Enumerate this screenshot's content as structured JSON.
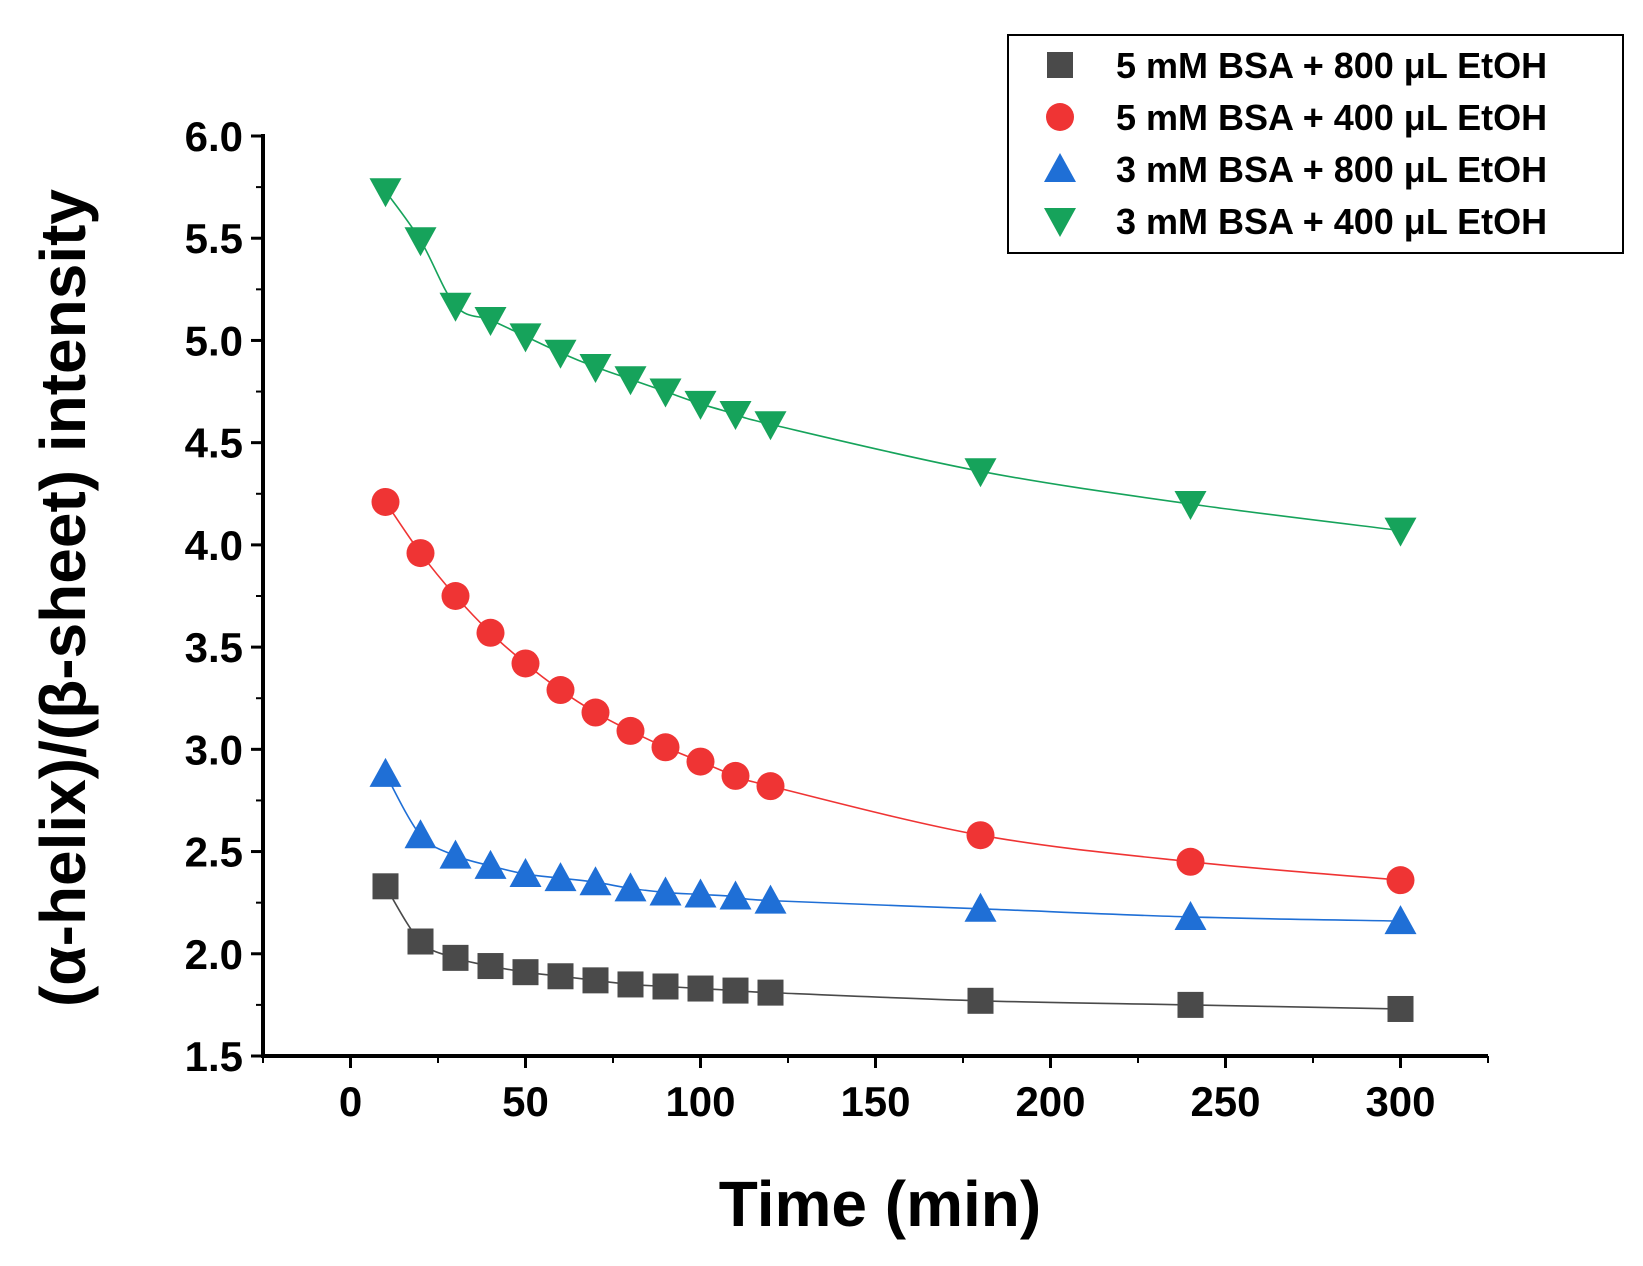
{
  "chart_data": {
    "type": "scatter",
    "title": "",
    "xlabel": "Time (min)",
    "ylabel": "(α-helix)/(β-sheet) intensity",
    "xlim": [
      -25,
      325
    ],
    "ylim": [
      1.5,
      6.0
    ],
    "x_ticks": [
      "0",
      "50",
      "100",
      "150",
      "200",
      "250",
      "300"
    ],
    "y_ticks": [
      "1.5",
      "2.0",
      "2.5",
      "3.0",
      "3.5",
      "4.0",
      "4.5",
      "5.0",
      "5.5",
      "6.0"
    ],
    "legend_position": "top-right",
    "x": [
      10,
      20,
      30,
      40,
      50,
      60,
      70,
      80,
      90,
      100,
      110,
      120,
      180,
      240,
      300
    ],
    "series": [
      {
        "name": "5 mM BSA + 800 μL EtOH",
        "marker": "square",
        "color": "#4a4a4a",
        "values": [
          2.33,
          2.06,
          1.98,
          1.94,
          1.91,
          1.89,
          1.87,
          1.85,
          1.84,
          1.83,
          1.82,
          1.81,
          1.77,
          1.75,
          1.73
        ]
      },
      {
        "name": "5 mM BSA + 400 μL EtOH",
        "marker": "circle",
        "color": "#ef3434",
        "values": [
          4.21,
          3.96,
          3.75,
          3.57,
          3.42,
          3.29,
          3.18,
          3.09,
          3.01,
          2.94,
          2.87,
          2.82,
          2.58,
          2.45,
          2.36
        ]
      },
      {
        "name": "3 mM BSA + 800 μL EtOH",
        "marker": "triangle-up",
        "color": "#1f6fd6",
        "values": [
          2.88,
          2.58,
          2.48,
          2.43,
          2.39,
          2.37,
          2.35,
          2.32,
          2.3,
          2.29,
          2.28,
          2.26,
          2.22,
          2.18,
          2.16
        ]
      },
      {
        "name": "3 mM BSA + 400 μL EtOH",
        "marker": "triangle-down",
        "color": "#16a35b",
        "values": [
          5.73,
          5.49,
          5.17,
          5.1,
          5.02,
          4.94,
          4.87,
          4.81,
          4.75,
          4.69,
          4.64,
          4.59,
          4.36,
          4.2,
          4.07
        ]
      }
    ]
  }
}
